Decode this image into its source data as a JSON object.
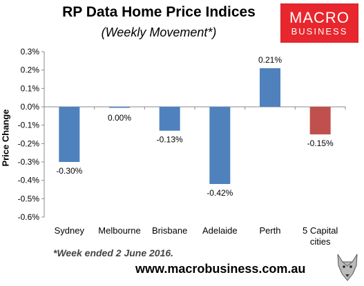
{
  "chart_data": {
    "type": "bar",
    "title": "RP Data Home Price Indices",
    "subtitle": "(Weekly Movement*)",
    "ylabel": "Price Change",
    "xlabel": "",
    "categories": [
      "Sydney",
      "Melbourne",
      "Brisbane",
      "Adelaide",
      "Perth",
      "5 Capital cities"
    ],
    "values": [
      -0.3,
      0.0,
      -0.13,
      -0.42,
      0.21,
      -0.15
    ],
    "data_labels": [
      "-0.30%",
      "0.00%",
      "-0.13%",
      "-0.42%",
      "0.21%",
      "-0.15%"
    ],
    "bar_colors": [
      "#4f81bd",
      "#4f81bd",
      "#4f81bd",
      "#4f81bd",
      "#4f81bd",
      "#c0504d"
    ],
    "ylim": [
      -0.6,
      0.3
    ],
    "yticks": [
      0.3,
      0.2,
      0.1,
      0.0,
      -0.1,
      -0.2,
      -0.3,
      -0.4,
      -0.5,
      -0.6
    ],
    "ytick_labels": [
      "0.3%",
      "0.2%",
      "0.1%",
      "0.0%",
      "-0.1%",
      "-0.2%",
      "-0.3%",
      "-0.4%",
      "-0.5%",
      "-0.6%"
    ],
    "grid": false,
    "legend": "none"
  },
  "logo": {
    "line1": "MACRO",
    "line2": "BUSINESS",
    "color": "#e8262d",
    "icon": "wolf-mascot-icon"
  },
  "footnote": "*Week ended 2 June 2016.",
  "website": "www.macrobusiness.com.au"
}
